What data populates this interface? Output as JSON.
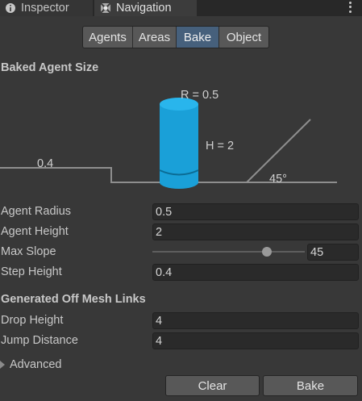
{
  "tabs": [
    {
      "label": "Inspector",
      "icon": "info-icon"
    },
    {
      "label": "Navigation",
      "icon": "navigation-icon"
    }
  ],
  "toolbar": {
    "segments": [
      "Agents",
      "Areas",
      "Bake",
      "Object"
    ],
    "active": "Bake"
  },
  "baked_agent": {
    "heading": "Baked Agent Size",
    "radius_label": "R = 0.5",
    "height_label": "H = 2",
    "step_label": "0.4",
    "slope_label": "45°"
  },
  "fields": {
    "agent_radius": {
      "label": "Agent Radius",
      "value": "0.5"
    },
    "agent_height": {
      "label": "Agent Height",
      "value": "2"
    },
    "max_slope": {
      "label": "Max Slope",
      "value": "45",
      "slider_fraction": 0.75
    },
    "step_height": {
      "label": "Step Height",
      "value": "0.4"
    }
  },
  "off_mesh": {
    "heading": "Generated Off Mesh Links",
    "drop_height": {
      "label": "Drop Height",
      "value": "4"
    },
    "jump_distance": {
      "label": "Jump Distance",
      "value": "4"
    }
  },
  "advanced": {
    "label": "Advanced"
  },
  "buttons": {
    "clear": "Clear",
    "bake": "Bake"
  },
  "colors": {
    "background": "#383838",
    "active_segment": "#46607c",
    "cylinder": "#1aa0d8"
  }
}
